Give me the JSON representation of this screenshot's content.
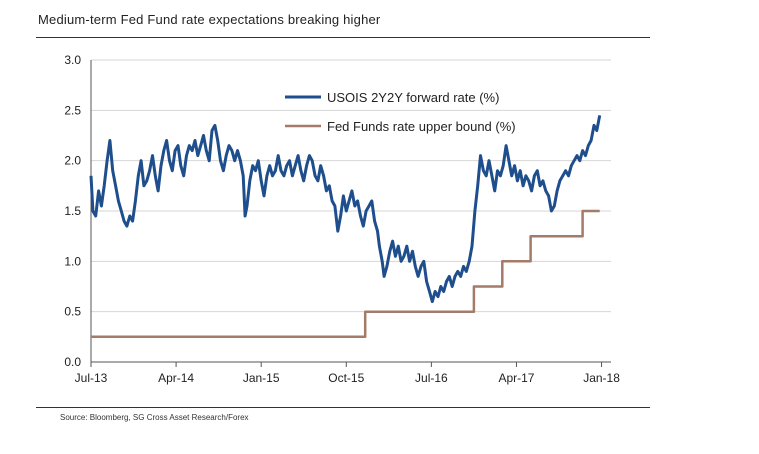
{
  "title": "Medium-term Fed Fund rate expectations breaking higher",
  "source": "Source: Bloomberg, SG Cross Asset Research/Forex",
  "chart_data": {
    "type": "line",
    "title": "Medium-term Fed Fund rate expectations breaking higher",
    "xlabel": "",
    "ylabel": "",
    "ylim": [
      0,
      3
    ],
    "yticks": [
      "0.0",
      "0.5",
      "1.0",
      "1.5",
      "2.0",
      "2.5",
      "3.0"
    ],
    "xticks": [
      "Jul-13",
      "Apr-14",
      "Jan-15",
      "Oct-15",
      "Jul-16",
      "Apr-17",
      "Jan-18"
    ],
    "xtick_months": [
      0,
      9,
      18,
      27,
      36,
      45,
      54
    ],
    "x_max_month": 55,
    "grid": "horizontal",
    "legend_position": "top-right",
    "series": [
      {
        "name": "USOIS 2Y2Y forward rate (%)",
        "color": "#1f4e8c",
        "points": [
          [
            0.0,
            1.85
          ],
          [
            0.2,
            1.5
          ],
          [
            0.5,
            1.45
          ],
          [
            0.8,
            1.7
          ],
          [
            1.1,
            1.55
          ],
          [
            1.4,
            1.75
          ],
          [
            1.7,
            2.0
          ],
          [
            2.0,
            2.2
          ],
          [
            2.3,
            1.9
          ],
          [
            2.6,
            1.75
          ],
          [
            2.9,
            1.6
          ],
          [
            3.2,
            1.5
          ],
          [
            3.5,
            1.4
          ],
          [
            3.8,
            1.35
          ],
          [
            4.1,
            1.45
          ],
          [
            4.4,
            1.4
          ],
          [
            4.7,
            1.6
          ],
          [
            5.0,
            1.85
          ],
          [
            5.3,
            2.0
          ],
          [
            5.6,
            1.75
          ],
          [
            5.9,
            1.8
          ],
          [
            6.2,
            1.9
          ],
          [
            6.5,
            2.05
          ],
          [
            6.8,
            1.85
          ],
          [
            7.1,
            1.7
          ],
          [
            7.4,
            1.95
          ],
          [
            7.7,
            2.1
          ],
          [
            8.0,
            2.2
          ],
          [
            8.3,
            2.0
          ],
          [
            8.6,
            1.9
          ],
          [
            8.9,
            2.1
          ],
          [
            9.2,
            2.15
          ],
          [
            9.5,
            1.95
          ],
          [
            9.8,
            1.85
          ],
          [
            10.1,
            2.05
          ],
          [
            10.4,
            2.15
          ],
          [
            10.7,
            2.1
          ],
          [
            11.0,
            2.2
          ],
          [
            11.3,
            2.05
          ],
          [
            11.6,
            2.15
          ],
          [
            11.9,
            2.25
          ],
          [
            12.2,
            2.1
          ],
          [
            12.5,
            2.0
          ],
          [
            12.8,
            2.3
          ],
          [
            13.1,
            2.35
          ],
          [
            13.4,
            2.2
          ],
          [
            13.7,
            2.0
          ],
          [
            14.0,
            1.9
          ],
          [
            14.3,
            2.05
          ],
          [
            14.6,
            2.15
          ],
          [
            14.9,
            2.1
          ],
          [
            15.2,
            2.0
          ],
          [
            15.5,
            2.1
          ],
          [
            15.8,
            2.0
          ],
          [
            16.1,
            1.85
          ],
          [
            16.3,
            1.45
          ],
          [
            16.5,
            1.55
          ],
          [
            16.8,
            1.8
          ],
          [
            17.1,
            1.95
          ],
          [
            17.4,
            1.9
          ],
          [
            17.7,
            2.0
          ],
          [
            18.0,
            1.8
          ],
          [
            18.3,
            1.65
          ],
          [
            18.6,
            1.85
          ],
          [
            18.9,
            1.95
          ],
          [
            19.2,
            1.85
          ],
          [
            19.5,
            1.9
          ],
          [
            19.8,
            2.05
          ],
          [
            20.1,
            1.9
          ],
          [
            20.4,
            1.85
          ],
          [
            20.7,
            1.95
          ],
          [
            21.0,
            2.0
          ],
          [
            21.3,
            1.85
          ],
          [
            21.6,
            1.95
          ],
          [
            21.9,
            2.05
          ],
          [
            22.2,
            1.9
          ],
          [
            22.5,
            1.8
          ],
          [
            22.8,
            1.95
          ],
          [
            23.1,
            2.05
          ],
          [
            23.4,
            2.0
          ],
          [
            23.7,
            1.85
          ],
          [
            24.0,
            1.8
          ],
          [
            24.3,
            1.95
          ],
          [
            24.6,
            1.85
          ],
          [
            24.9,
            1.7
          ],
          [
            25.2,
            1.75
          ],
          [
            25.5,
            1.6
          ],
          [
            25.8,
            1.55
          ],
          [
            26.1,
            1.3
          ],
          [
            26.4,
            1.45
          ],
          [
            26.7,
            1.65
          ],
          [
            27.0,
            1.5
          ],
          [
            27.3,
            1.6
          ],
          [
            27.6,
            1.7
          ],
          [
            27.9,
            1.55
          ],
          [
            28.2,
            1.6
          ],
          [
            28.5,
            1.45
          ],
          [
            28.8,
            1.35
          ],
          [
            29.1,
            1.5
          ],
          [
            29.4,
            1.55
          ],
          [
            29.7,
            1.6
          ],
          [
            30.0,
            1.4
          ],
          [
            30.3,
            1.3
          ],
          [
            30.5,
            1.15
          ],
          [
            30.8,
            1.0
          ],
          [
            31.0,
            0.85
          ],
          [
            31.3,
            0.95
          ],
          [
            31.6,
            1.1
          ],
          [
            31.9,
            1.2
          ],
          [
            32.2,
            1.05
          ],
          [
            32.5,
            1.15
          ],
          [
            32.8,
            1.0
          ],
          [
            33.1,
            1.05
          ],
          [
            33.4,
            1.15
          ],
          [
            33.7,
            1.0
          ],
          [
            34.0,
            1.1
          ],
          [
            34.3,
            0.95
          ],
          [
            34.6,
            0.85
          ],
          [
            34.9,
            0.95
          ],
          [
            35.2,
            1.0
          ],
          [
            35.5,
            0.8
          ],
          [
            35.8,
            0.7
          ],
          [
            36.1,
            0.6
          ],
          [
            36.4,
            0.7
          ],
          [
            36.7,
            0.65
          ],
          [
            37.0,
            0.75
          ],
          [
            37.3,
            0.7
          ],
          [
            37.6,
            0.8
          ],
          [
            37.9,
            0.85
          ],
          [
            38.2,
            0.75
          ],
          [
            38.5,
            0.85
          ],
          [
            38.8,
            0.9
          ],
          [
            39.1,
            0.85
          ],
          [
            39.4,
            0.95
          ],
          [
            39.7,
            0.9
          ],
          [
            40.0,
            1.0
          ],
          [
            40.3,
            1.15
          ],
          [
            40.6,
            1.5
          ],
          [
            40.9,
            1.75
          ],
          [
            41.2,
            2.05
          ],
          [
            41.5,
            1.9
          ],
          [
            41.8,
            1.85
          ],
          [
            42.1,
            2.0
          ],
          [
            42.4,
            1.85
          ],
          [
            42.7,
            1.7
          ],
          [
            43.0,
            1.9
          ],
          [
            43.3,
            1.85
          ],
          [
            43.6,
            1.95
          ],
          [
            43.9,
            2.15
          ],
          [
            44.2,
            2.0
          ],
          [
            44.5,
            1.85
          ],
          [
            44.8,
            1.95
          ],
          [
            45.1,
            1.8
          ],
          [
            45.4,
            1.9
          ],
          [
            45.7,
            1.75
          ],
          [
            46.0,
            1.85
          ],
          [
            46.3,
            1.8
          ],
          [
            46.6,
            1.7
          ],
          [
            46.9,
            1.85
          ],
          [
            47.2,
            1.9
          ],
          [
            47.5,
            1.75
          ],
          [
            47.8,
            1.8
          ],
          [
            48.1,
            1.7
          ],
          [
            48.4,
            1.65
          ],
          [
            48.7,
            1.5
          ],
          [
            49.0,
            1.55
          ],
          [
            49.3,
            1.7
          ],
          [
            49.6,
            1.8
          ],
          [
            49.9,
            1.85
          ],
          [
            50.2,
            1.9
          ],
          [
            50.5,
            1.85
          ],
          [
            50.8,
            1.95
          ],
          [
            51.1,
            2.0
          ],
          [
            51.4,
            2.05
          ],
          [
            51.7,
            2.0
          ],
          [
            52.0,
            2.1
          ],
          [
            52.3,
            2.05
          ],
          [
            52.6,
            2.15
          ],
          [
            52.9,
            2.2
          ],
          [
            53.2,
            2.35
          ],
          [
            53.5,
            2.3
          ],
          [
            53.8,
            2.45
          ]
        ]
      },
      {
        "name": "Fed Funds rate upper bound (%)",
        "color": "#a47a68",
        "points": [
          [
            0.0,
            0.25
          ],
          [
            29.0,
            0.25
          ],
          [
            29.0,
            0.5
          ],
          [
            40.5,
            0.5
          ],
          [
            40.5,
            0.75
          ],
          [
            43.5,
            0.75
          ],
          [
            43.5,
            1.0
          ],
          [
            46.5,
            1.0
          ],
          [
            46.5,
            1.25
          ],
          [
            52.0,
            1.25
          ],
          [
            52.0,
            1.5
          ],
          [
            53.8,
            1.5
          ]
        ]
      }
    ]
  }
}
